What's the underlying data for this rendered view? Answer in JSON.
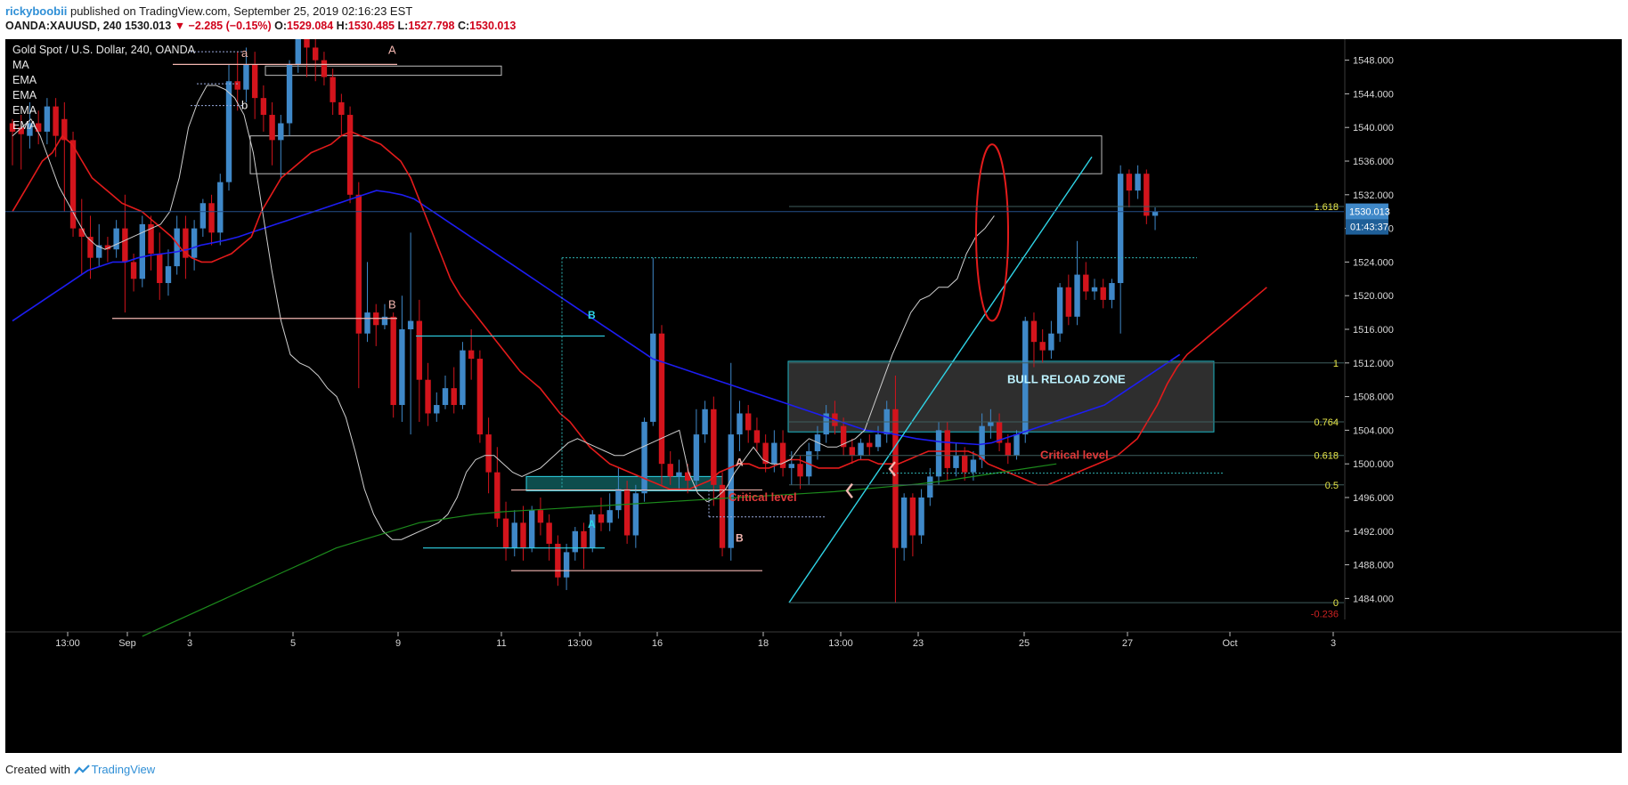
{
  "header": {
    "user": "rickyboobii",
    "published": " published on TradingView.com, September 25, 2019 02:16:23 EST",
    "symbol": "OANDA:XAUUSD, 240",
    "last": "1530.013",
    "change": "▼ −2.285 (−0.15%)",
    "o_label": "O:",
    "o": "1529.084",
    "h_label": "H:",
    "h": "1530.485",
    "l_label": "L:",
    "l": "1527.798",
    "c_label": "C:",
    "c": "1530.013"
  },
  "footer": {
    "created": "Created with",
    "brand": "TradingView"
  },
  "colors": {
    "background": "#000000",
    "bull": "#3f88c8",
    "bear": "#d3141c",
    "ema_red": "#e31b1b",
    "ema_blue": "#1d1df2",
    "ema_green": "#1c8a1c",
    "ma_white": "#cfcfcf",
    "cyan": "#2fd4e6",
    "label_pink": "#f3b6b0",
    "fib_yellow": "#e8e84a",
    "critical_red": "#e03a3a"
  },
  "chart_data": {
    "type": "candlestick",
    "title": "Gold Spot / U.S. Dollar, 240, OANDA",
    "legend": [
      "MA",
      "EMA",
      "EMA",
      "EMA",
      "EMA"
    ],
    "ylim": [
      1481.5,
      1550.5
    ],
    "y_ticks": [
      "1548.000",
      "1544.000",
      "1540.000",
      "1536.000",
      "1532.000",
      "1528.000",
      "1524.000",
      "1520.000",
      "1516.000",
      "1512.000",
      "1508.000",
      "1504.000",
      "1500.000",
      "1496.000",
      "1492.000",
      "1488.000",
      "1484.000"
    ],
    "x_ticks": [
      "13:00",
      "Sep",
      "3",
      "5",
      "9",
      "11",
      "13:00",
      "16",
      "18",
      "13:00",
      "23",
      "25",
      "27",
      "Oct",
      "3"
    ],
    "last_price": "1530.013",
    "countdown": "01:43:37",
    "candles": [
      [
        1540.5,
        1539.5,
        1541.0,
        1535.5
      ],
      [
        1540.0,
        1539.2,
        1541.5,
        1535.0
      ],
      [
        1539.0,
        1540.5,
        1543.0,
        1537.5
      ],
      [
        1540.5,
        1539.5,
        1542.0,
        1538.0
      ],
      [
        1539.5,
        1542.5,
        1543.5,
        1538.0
      ],
      [
        1542.5,
        1539.0,
        1543.5,
        1536.5
      ],
      [
        1541.0,
        1538.5,
        1543.0,
        1530.0
      ],
      [
        1538.5,
        1528.0,
        1539.5,
        1527.0
      ],
      [
        1528.0,
        1527.0,
        1531.5,
        1522.5
      ],
      [
        1527.0,
        1524.5,
        1529.5,
        1522.0
      ],
      [
        1524.5,
        1526.0,
        1528.5,
        1523.5
      ],
      [
        1526.0,
        1525.5,
        1527.0,
        1524.0
      ],
      [
        1525.5,
        1528.0,
        1529.0,
        1524.5
      ],
      [
        1528.0,
        1524.0,
        1532.0,
        1518.0
      ],
      [
        1524.0,
        1522.0,
        1525.0,
        1520.5
      ],
      [
        1522.0,
        1528.5,
        1529.5,
        1521.0
      ],
      [
        1528.5,
        1525.0,
        1529.5,
        1523.0
      ],
      [
        1525.0,
        1521.5,
        1527.5,
        1519.5
      ],
      [
        1521.5,
        1523.5,
        1525.5,
        1520.0
      ],
      [
        1523.5,
        1528.0,
        1529.5,
        1522.5
      ],
      [
        1528.0,
        1524.5,
        1529.5,
        1522.0
      ],
      [
        1524.5,
        1528.0,
        1529.0,
        1523.0
      ],
      [
        1528.0,
        1531.0,
        1531.5,
        1527.0
      ],
      [
        1531.0,
        1527.5,
        1532.0,
        1526.0
      ],
      [
        1527.5,
        1533.5,
        1534.5,
        1526.0
      ],
      [
        1533.5,
        1545.5,
        1547.5,
        1532.5
      ],
      [
        1545.5,
        1544.5,
        1549.0,
        1542.0
      ],
      [
        1544.5,
        1547.5,
        1549.5,
        1543.0
      ],
      [
        1547.5,
        1543.5,
        1549.0,
        1541.0
      ],
      [
        1543.5,
        1541.5,
        1545.0,
        1539.5
      ],
      [
        1541.5,
        1538.5,
        1543.0,
        1535.5
      ],
      [
        1538.5,
        1540.5,
        1541.5,
        1534.0
      ],
      [
        1540.5,
        1547.5,
        1548.0,
        1539.0
      ],
      [
        1547.5,
        1550.5,
        1551.0,
        1546.5
      ],
      [
        1550.5,
        1549.5,
        1551.0,
        1546.0
      ],
      [
        1549.5,
        1548.0,
        1550.5,
        1545.5
      ],
      [
        1548.0,
        1546.0,
        1549.0,
        1545.0
      ],
      [
        1546.0,
        1543.0,
        1547.0,
        1541.5
      ],
      [
        1543.0,
        1541.5,
        1544.0,
        1539.0
      ],
      [
        1541.5,
        1532.0,
        1542.5,
        1531.0
      ],
      [
        1532.0,
        1515.5,
        1533.5,
        1509.0
      ],
      [
        1515.5,
        1518.0,
        1524.0,
        1514.5
      ],
      [
        1518.0,
        1516.5,
        1519.0,
        1514.0
      ],
      [
        1516.5,
        1517.5,
        1519.0,
        1516.0
      ],
      [
        1517.5,
        1507.0,
        1518.0,
        1505.5
      ],
      [
        1507.0,
        1516.0,
        1520.0,
        1505.0
      ],
      [
        1516.0,
        1517.0,
        1527.5,
        1503.5
      ],
      [
        1517.0,
        1510.0,
        1519.5,
        1505.0
      ],
      [
        1510.0,
        1506.0,
        1512.0,
        1504.5
      ],
      [
        1506.0,
        1507.0,
        1508.5,
        1505.0
      ],
      [
        1507.0,
        1509.0,
        1510.5,
        1506.5
      ],
      [
        1509.0,
        1507.0,
        1511.5,
        1506.0
      ],
      [
        1507.0,
        1513.5,
        1514.5,
        1506.5
      ],
      [
        1513.5,
        1512.5,
        1516.0,
        1510.0
      ],
      [
        1512.5,
        1503.5,
        1513.5,
        1502.5
      ],
      [
        1503.5,
        1499.0,
        1505.5,
        1496.5
      ],
      [
        1499.0,
        1493.5,
        1502.0,
        1492.5
      ],
      [
        1493.5,
        1490.0,
        1495.5,
        1488.5
      ],
      [
        1490.0,
        1493.0,
        1494.5,
        1489.0
      ],
      [
        1493.0,
        1490.0,
        1495.0,
        1488.5
      ],
      [
        1490.0,
        1494.5,
        1495.0,
        1489.5
      ],
      [
        1494.5,
        1493.0,
        1496.0,
        1491.5
      ],
      [
        1493.0,
        1490.5,
        1494.0,
        1488.5
      ],
      [
        1490.5,
        1486.5,
        1491.5,
        1485.5
      ],
      [
        1486.5,
        1489.5,
        1490.5,
        1485.0
      ],
      [
        1489.5,
        1492.0,
        1492.5,
        1488.5
      ],
      [
        1492.0,
        1490.0,
        1493.0,
        1487.5
      ],
      [
        1490.0,
        1494.0,
        1494.5,
        1489.5
      ],
      [
        1494.0,
        1493.0,
        1496.0,
        1492.0
      ],
      [
        1493.0,
        1494.5,
        1496.5,
        1492.0
      ],
      [
        1494.5,
        1497.0,
        1499.5,
        1493.5
      ],
      [
        1497.0,
        1491.5,
        1498.0,
        1490.5
      ],
      [
        1491.5,
        1496.5,
        1497.5,
        1490.0
      ],
      [
        1496.5,
        1505.0,
        1505.5,
        1495.5
      ],
      [
        1505.0,
        1515.5,
        1524.5,
        1504.5
      ],
      [
        1515.5,
        1500.0,
        1516.5,
        1497.5
      ],
      [
        1500.0,
        1498.5,
        1501.5,
        1497.5
      ],
      [
        1498.5,
        1499.0,
        1500.5,
        1497.0
      ],
      [
        1499.0,
        1498.0,
        1500.0,
        1496.5
      ],
      [
        1498.0,
        1503.5,
        1506.5,
        1497.0
      ],
      [
        1503.5,
        1506.5,
        1507.5,
        1502.5
      ],
      [
        1506.5,
        1497.5,
        1508.0,
        1495.0
      ],
      [
        1497.5,
        1490.0,
        1499.0,
        1489.0
      ],
      [
        1490.0,
        1503.5,
        1512.0,
        1488.5
      ],
      [
        1503.5,
        1506.0,
        1507.5,
        1501.5
      ],
      [
        1506.0,
        1504.0,
        1507.0,
        1502.5
      ],
      [
        1504.0,
        1502.5,
        1505.5,
        1501.5
      ],
      [
        1502.5,
        1500.0,
        1503.5,
        1499.0
      ],
      [
        1500.0,
        1502.5,
        1504.0,
        1499.0
      ],
      [
        1502.5,
        1499.5,
        1504.0,
        1498.5
      ],
      [
        1499.5,
        1500.0,
        1501.5,
        1497.5
      ],
      [
        1500.0,
        1498.5,
        1501.0,
        1497.0
      ],
      [
        1498.5,
        1501.5,
        1502.5,
        1497.5
      ],
      [
        1501.5,
        1503.5,
        1504.5,
        1500.5
      ],
      [
        1503.5,
        1506.0,
        1507.0,
        1502.5
      ],
      [
        1506.0,
        1504.5,
        1507.5,
        1503.5
      ],
      [
        1504.5,
        1502.0,
        1505.5,
        1501.0
      ],
      [
        1502.0,
        1501.0,
        1503.0,
        1500.0
      ],
      [
        1501.0,
        1502.5,
        1503.0,
        1500.5
      ],
      [
        1502.5,
        1502.0,
        1503.5,
        1501.0
      ],
      [
        1502.0,
        1503.5,
        1504.5,
        1501.5
      ],
      [
        1503.5,
        1506.5,
        1507.5,
        1502.5
      ],
      [
        1506.5,
        1490.0,
        1510.5,
        1483.5
      ],
      [
        1490.0,
        1496.0,
        1496.5,
        1488.5
      ],
      [
        1496.0,
        1491.5,
        1496.5,
        1489.0
      ],
      [
        1491.5,
        1496.0,
        1497.0,
        1490.5
      ],
      [
        1496.0,
        1498.5,
        1499.5,
        1495.0
      ],
      [
        1498.5,
        1504.0,
        1505.0,
        1497.5
      ],
      [
        1504.0,
        1499.5,
        1505.0,
        1498.0
      ],
      [
        1499.5,
        1501.0,
        1502.5,
        1498.5
      ],
      [
        1501.0,
        1499.0,
        1502.0,
        1498.0
      ],
      [
        1499.0,
        1500.5,
        1501.5,
        1498.0
      ],
      [
        1500.5,
        1504.5,
        1506.0,
        1499.5
      ],
      [
        1504.5,
        1505.0,
        1506.5,
        1503.0
      ],
      [
        1505.0,
        1502.5,
        1506.0,
        1501.5
      ],
      [
        1502.5,
        1501.0,
        1503.5,
        1500.0
      ],
      [
        1501.0,
        1503.5,
        1504.0,
        1500.5
      ],
      [
        1503.5,
        1517.0,
        1517.5,
        1502.5
      ],
      [
        1517.0,
        1514.5,
        1518.0,
        1511.5
      ],
      [
        1514.5,
        1513.5,
        1516.0,
        1512.0
      ],
      [
        1513.5,
        1515.5,
        1517.0,
        1512.5
      ],
      [
        1515.5,
        1521.0,
        1521.5,
        1514.5
      ],
      [
        1521.0,
        1517.5,
        1522.5,
        1516.5
      ],
      [
        1517.5,
        1522.5,
        1526.5,
        1516.5
      ],
      [
        1522.5,
        1520.5,
        1524.0,
        1519.5
      ],
      [
        1520.5,
        1521.0,
        1522.0,
        1519.5
      ],
      [
        1521.0,
        1519.5,
        1522.0,
        1518.5
      ],
      [
        1519.5,
        1521.5,
        1522.0,
        1518.5
      ],
      [
        1521.5,
        1534.5,
        1535.5,
        1515.5
      ],
      [
        1534.5,
        1532.5,
        1535.0,
        1530.5
      ],
      [
        1532.5,
        1534.5,
        1535.5,
        1531.5
      ],
      [
        1534.5,
        1529.5,
        1535.0,
        1528.5
      ],
      [
        1529.5,
        1530.0,
        1530.5,
        1527.8
      ]
    ],
    "ema_red": [
      1530,
      1532,
      1534,
      1536,
      1537,
      1539,
      1538,
      1536,
      1534,
      1533,
      1532,
      1531,
      1530.5,
      1530,
      1529,
      1528,
      1527,
      1525.5,
      1524.5,
      1524,
      1524,
      1524.5,
      1525,
      1526,
      1527,
      1530,
      1532,
      1534,
      1535,
      1536,
      1537,
      1537.5,
      1538,
      1539,
      1539.5,
      1539,
      1538.5,
      1538,
      1537,
      1536,
      1534,
      1531,
      1528,
      1525,
      1522,
      1520,
      1518.5,
      1517,
      1515.5,
      1514,
      1512.5,
      1511,
      1510,
      1509,
      1507.5,
      1506,
      1505,
      1503.5,
      1502,
      1501,
      1500,
      1499.5,
      1499,
      1498.5,
      1498,
      1497.5,
      1497,
      1497,
      1497,
      1497.5,
      1498,
      1499,
      1499.5,
      1500,
      1500,
      1499.5,
      1499.5,
      1500,
      1500.5,
      1500.5,
      1500,
      1499.5,
      1499.5,
      1499.5,
      1500,
      1500.5,
      1500.5,
      1500,
      1500,
      1500,
      1500.5,
      1501,
      1501.5,
      1501.5,
      1501.5,
      1501.5,
      1501.5,
      1501,
      1500,
      1499.5,
      1499,
      1498.5,
      1498,
      1497.5,
      1497.5,
      1498,
      1498.5,
      1499,
      1499.5,
      1500,
      1500.5,
      1501,
      1502,
      1503,
      1505,
      1507,
      1509.5,
      1511.5,
      1513,
      1514,
      1515,
      1516,
      1517,
      1518,
      1519,
      1520,
      1521
    ],
    "ema_blue": [
      1517,
      1518,
      1519,
      1520,
      1521,
      1522,
      1523,
      1523.5,
      1524,
      1524,
      1524.5,
      1524.8,
      1525,
      1525.2,
      1525.5,
      1526,
      1526.3,
      1526.6,
      1527,
      1527.5,
      1528,
      1528.5,
      1529,
      1529.5,
      1530,
      1530.5,
      1531,
      1531.5,
      1532,
      1532.5,
      1532.3,
      1532,
      1531.5,
      1530.5,
      1529.5,
      1528.5,
      1527.5,
      1526.5,
      1525.5,
      1524.5,
      1523.5,
      1522.5,
      1521.5,
      1520.5,
      1519.5,
      1518.5,
      1517.5,
      1516.5,
      1515.5,
      1514.5,
      1513.5,
      1512.5,
      1512,
      1511.5,
      1511,
      1510.5,
      1510,
      1509.5,
      1509,
      1508.5,
      1508,
      1507.5,
      1507,
      1506.5,
      1506,
      1505.5,
      1505,
      1504.5,
      1504,
      1503.8,
      1503.6,
      1503.3,
      1503,
      1502.8,
      1502.6,
      1502.5,
      1502.4,
      1502.3,
      1502.5,
      1503,
      1503.5,
      1504,
      1504.5,
      1505,
      1505.5,
      1506,
      1506.5,
      1507,
      1508,
      1509,
      1510,
      1511,
      1512,
      1513
    ],
    "ema_green": [
      1479.5,
      1481,
      1482.5,
      1484,
      1485.5,
      1487,
      1488.5,
      1490,
      1491,
      1492,
      1493,
      1493.5,
      1494,
      1494.3,
      1494.5,
      1494.7,
      1494.9,
      1495.1,
      1495.3,
      1495.5,
      1495.7,
      1495.9,
      1496.1,
      1496.3,
      1496.5,
      1496.7,
      1497,
      1497.3,
      1497.6,
      1498,
      1498.5,
      1499,
      1499.5,
      1500
    ],
    "ma_white": [
      1539,
      1540,
      1541,
      1539,
      1536,
      1533,
      1531,
      1529,
      1527,
      1526,
      1525.5,
      1526,
      1526.5,
      1527,
      1527.5,
      1528,
      1528.5,
      1530,
      1534,
      1540,
      1543,
      1545,
      1545,
      1544.5,
      1543.5,
      1541.5,
      1537,
      1530,
      1523,
      1517,
      1513,
      1512,
      1511.5,
      1510.5,
      1509,
      1508,
      1505.5,
      1501.5,
      1497,
      1494,
      1492,
      1491,
      1491,
      1491.5,
      1492,
      1492.5,
      1493,
      1494,
      1496,
      1499,
      1500.5,
      1501,
      1501,
      1500,
      1499,
      1498.5,
      1499,
      1499.5,
      1500.5,
      1501.5,
      1502.5,
      1503,
      1502.5,
      1502,
      1501.5,
      1501,
      1501,
      1501.5,
      1502,
      1502.5,
      1503,
      1503.5,
      1504,
      1499,
      1496.5,
      1495.5,
      1496,
      1497,
      1499,
      1500.5,
      1502,
      1500.5,
      1500,
      1500,
      1500.5,
      1502,
      1503,
      1502.5,
      1502,
      1502,
      1502.5,
      1503,
      1504,
      1507,
      1510,
      1513,
      1515.5,
      1518,
      1519.5,
      1520,
      1521,
      1521,
      1522,
      1525,
      1527,
      1528,
      1529.5
    ],
    "annotations": {
      "bull_zone": "BULL RELOAD ZONE",
      "critical1": "Critical level",
      "critical2": "Critical level",
      "label_a_small": "a",
      "label_b_small": "b",
      "label_A_top": "A",
      "label_B_left": "B",
      "label_B_cyan": "B",
      "label_A_cyan": "A",
      "label_A_mid": "A",
      "label_B_mid": "B"
    },
    "fib_levels": [
      {
        "label": "1.618",
        "price": 1530.6
      },
      {
        "label": "1",
        "price": 1512.0
      },
      {
        "label": "0.764",
        "price": 1505.0
      },
      {
        "label": "0.618",
        "price": 1501.0
      },
      {
        "label": "0.5",
        "price": 1497.5
      },
      {
        "label": "0",
        "price": 1483.5
      },
      {
        "label": "-0.236",
        "price": 1482.2
      }
    ]
  }
}
